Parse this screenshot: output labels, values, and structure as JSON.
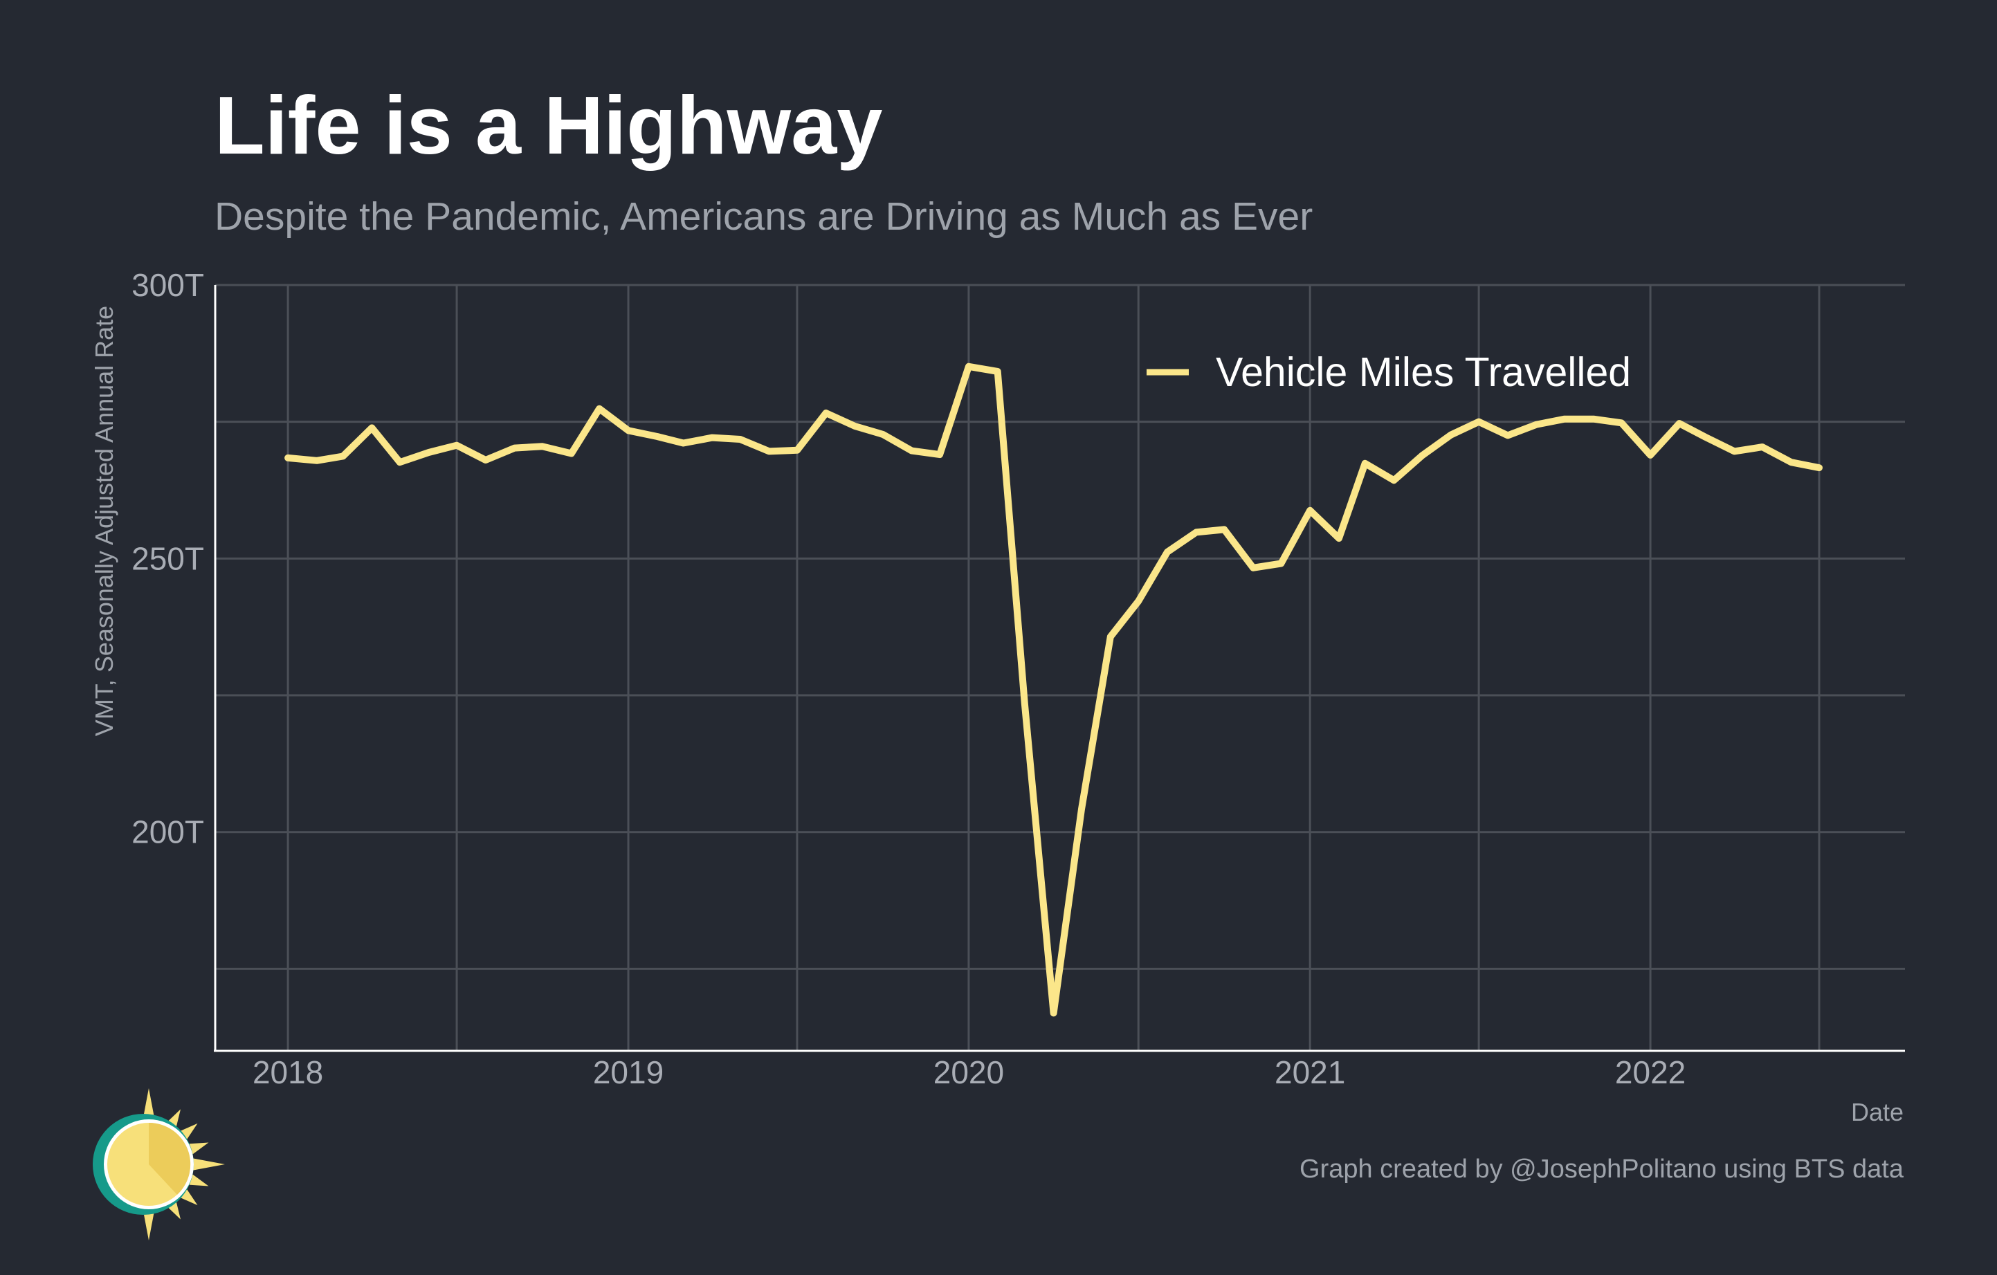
{
  "colors": {
    "background": "#252932",
    "series": "#fbe68a",
    "grid": "#4b4f57",
    "text_primary": "#ffffff",
    "text_secondary": "#9ea3ab",
    "logo_ring": "#169a8a",
    "logo_sun": "#f7e07a"
  },
  "logo": {
    "icon": "sun-logo-icon"
  },
  "chart_data": {
    "type": "line",
    "title": "Life is a Highway",
    "subtitle": "Despite the Pandemic, Americans are Driving as Much as Ever",
    "xlabel": "Date",
    "ylabel": "VMT, Seasonally Adjusted Annual Rate",
    "caption": "Graph created by @JosephPolitano using BTS data",
    "legend_position": "top-right",
    "grid": true,
    "x_axis": {
      "type": "date",
      "ticks": [
        "2018",
        "2019",
        "2020",
        "2021",
        "2022"
      ],
      "range": [
        "2017-10-15",
        "2022-10-01"
      ]
    },
    "y_axis": {
      "ticks": [
        {
          "value": 200,
          "label": "200T"
        },
        {
          "value": 250,
          "label": "250T"
        },
        {
          "value": 300,
          "label": "300T"
        }
      ],
      "minor_gridlines": [
        175,
        225,
        275
      ],
      "range": [
        160,
        300
      ],
      "unit": "trillion miles"
    },
    "series": [
      {
        "name": "Vehicle Miles Travelled",
        "points": [
          [
            "2018-01-01",
            268.4
          ],
          [
            "2018-02-01",
            267.9
          ],
          [
            "2018-03-01",
            268.7
          ],
          [
            "2018-04-01",
            273.9
          ],
          [
            "2018-05-01",
            267.6
          ],
          [
            "2018-06-01",
            269.4
          ],
          [
            "2018-07-01",
            270.7
          ],
          [
            "2018-08-01",
            268.0
          ],
          [
            "2018-09-01",
            270.2
          ],
          [
            "2018-10-01",
            270.5
          ],
          [
            "2018-11-01",
            269.2
          ],
          [
            "2018-12-01",
            277.4
          ],
          [
            "2019-01-01",
            273.4
          ],
          [
            "2019-02-01",
            272.3
          ],
          [
            "2019-03-01",
            271.1
          ],
          [
            "2019-04-01",
            272.1
          ],
          [
            "2019-05-01",
            271.8
          ],
          [
            "2019-06-01",
            269.6
          ],
          [
            "2019-07-01",
            269.8
          ],
          [
            "2019-08-01",
            276.6
          ],
          [
            "2019-09-01",
            274.2
          ],
          [
            "2019-10-01",
            272.7
          ],
          [
            "2019-11-01",
            269.7
          ],
          [
            "2019-12-01",
            269.0
          ],
          [
            "2020-01-01",
            285.1
          ],
          [
            "2020-02-01",
            284.2
          ],
          [
            "2020-03-01",
            223.5
          ],
          [
            "2020-04-01",
            166.9
          ],
          [
            "2020-05-01",
            204.2
          ],
          [
            "2020-06-01",
            235.7
          ],
          [
            "2020-07-01",
            242.2
          ],
          [
            "2020-08-01",
            251.2
          ],
          [
            "2020-09-01",
            254.8
          ],
          [
            "2020-10-01",
            255.3
          ],
          [
            "2020-11-01",
            248.3
          ],
          [
            "2020-12-01",
            249.1
          ],
          [
            "2021-01-01",
            258.8
          ],
          [
            "2021-02-01",
            253.7
          ],
          [
            "2021-03-01",
            267.4
          ],
          [
            "2021-04-01",
            264.3
          ],
          [
            "2021-05-01",
            268.8
          ],
          [
            "2021-06-01",
            272.6
          ],
          [
            "2021-07-01",
            275.0
          ],
          [
            "2021-08-01",
            272.5
          ],
          [
            "2021-09-01",
            274.5
          ],
          [
            "2021-10-01",
            275.5
          ],
          [
            "2021-11-01",
            275.5
          ],
          [
            "2021-12-01",
            274.8
          ],
          [
            "2022-01-01",
            268.9
          ],
          [
            "2022-02-01",
            274.7
          ],
          [
            "2022-03-01",
            272.2
          ],
          [
            "2022-04-01",
            269.6
          ],
          [
            "2022-05-01",
            270.4
          ],
          [
            "2022-06-01",
            267.6
          ],
          [
            "2022-07-01",
            266.6
          ]
        ]
      }
    ]
  }
}
